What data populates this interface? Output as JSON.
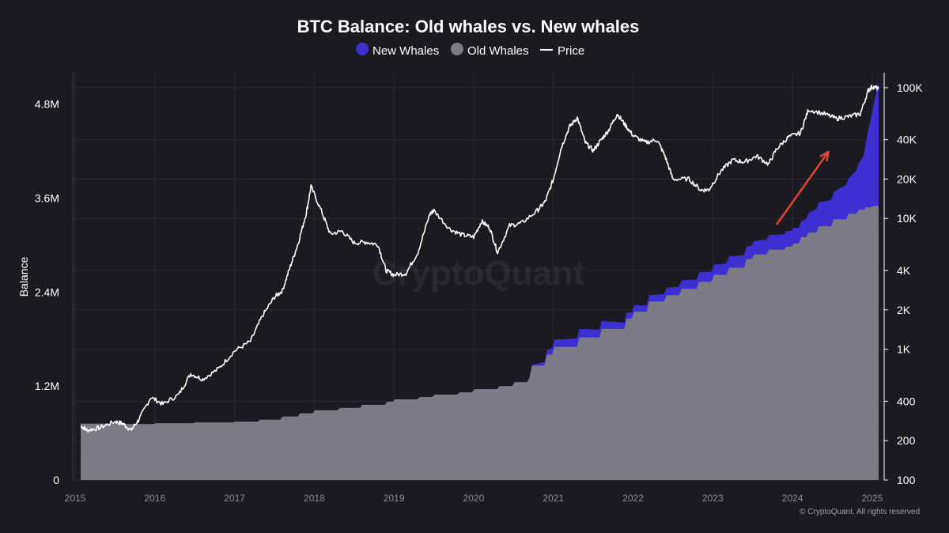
{
  "chart_data": {
    "type": "area",
    "title": "BTC Balance: Old whales vs. New whales",
    "ylabel": "Balance",
    "legend": [
      {
        "name": "New Whales",
        "color": "#3d2fd1",
        "marker": "circle"
      },
      {
        "name": "Old Whales",
        "color": "#7c7b86",
        "marker": "circle"
      },
      {
        "name": "Price",
        "color": "#ffffff",
        "marker": "line"
      }
    ],
    "y_left": {
      "min": 0,
      "max": 5200000,
      "ticks": [
        0,
        1200000,
        2400000,
        3600000,
        4800000
      ],
      "tick_labels": [
        "0",
        "1.2M",
        "2.4M",
        "3.6M",
        "4.8M"
      ]
    },
    "y_right": {
      "scale": "log",
      "min": 100,
      "max": 130000,
      "ticks": [
        100,
        200,
        400,
        1000,
        2000,
        4000,
        10000,
        20000,
        40000,
        100000
      ],
      "tick_labels": [
        "100",
        "200",
        "400",
        "1K",
        "2K",
        "4K",
        "10K",
        "20K",
        "40K",
        "100K"
      ]
    },
    "x_ticks": [
      "2015",
      "2016",
      "2017",
      "2018",
      "2019",
      "2020",
      "2021",
      "2022",
      "2023",
      "2024",
      "2025"
    ],
    "x_range": [
      2015.0,
      2025.1
    ],
    "grid": true,
    "legend_position": "top-center",
    "series": [
      {
        "name": "Old Whales",
        "x": [
          2015.07,
          2015.5,
          2016.0,
          2016.5,
          2017.0,
          2017.3,
          2017.6,
          2017.8,
          2018.0,
          2018.3,
          2018.6,
          2018.9,
          2019.0,
          2019.3,
          2019.5,
          2019.8,
          2020.0,
          2020.3,
          2020.5,
          2020.7,
          2020.72,
          2020.9,
          2021.0,
          2021.3,
          2021.6,
          2021.9,
          2022.0,
          2022.2,
          2022.4,
          2022.6,
          2022.8,
          2023.0,
          2023.2,
          2023.4,
          2023.5,
          2023.7,
          2023.9,
          2024.0,
          2024.1,
          2024.2,
          2024.3,
          2024.5,
          2024.7,
          2024.8,
          2024.9,
          2025.0,
          2025.08
        ],
        "values": [
          720000,
          715000,
          725000,
          735000,
          745000,
          770000,
          810000,
          850000,
          890000,
          920000,
          960000,
          1000000,
          1030000,
          1060000,
          1090000,
          1120000,
          1160000,
          1200000,
          1250000,
          1300000,
          1460000,
          1600000,
          1700000,
          1820000,
          1930000,
          2060000,
          2150000,
          2280000,
          2360000,
          2440000,
          2530000,
          2620000,
          2710000,
          2820000,
          2880000,
          2940000,
          2980000,
          3020000,
          3100000,
          3160000,
          3240000,
          3330000,
          3400000,
          3450000,
          3480000,
          3500000,
          3500000
        ]
      },
      {
        "name": "New Whales",
        "x": [
          2015.07,
          2020.7,
          2020.9,
          2021.0,
          2021.3,
          2021.6,
          2021.9,
          2022.2,
          2022.6,
          2023.0,
          2023.4,
          2023.7,
          2024.0,
          2024.1,
          2024.2,
          2024.3,
          2024.5,
          2024.6,
          2024.7,
          2024.8,
          2024.9,
          2024.95,
          2025.0,
          2025.05,
          2025.08
        ],
        "values": [
          0,
          0,
          50000,
          90000,
          110000,
          100000,
          80000,
          80000,
          110000,
          130000,
          160000,
          190000,
          200000,
          200000,
          250000,
          300000,
          340000,
          400000,
          450000,
          550000,
          700000,
          1000000,
          1200000,
          1450000,
          1600000
        ]
      },
      {
        "name": "Price",
        "axis": "right",
        "x": [
          2015.07,
          2015.15,
          2015.3,
          2015.5,
          2015.6,
          2015.7,
          2015.8,
          2015.95,
          2016.1,
          2016.3,
          2016.45,
          2016.6,
          2016.8,
          2017.0,
          2017.2,
          2017.35,
          2017.5,
          2017.6,
          2017.7,
          2017.8,
          2017.9,
          2017.96,
          2018.1,
          2018.2,
          2018.35,
          2018.5,
          2018.65,
          2018.8,
          2018.9,
          2019.0,
          2019.15,
          2019.3,
          2019.45,
          2019.5,
          2019.7,
          2019.85,
          2020.0,
          2020.1,
          2020.2,
          2020.3,
          2020.45,
          2020.6,
          2020.8,
          2020.9,
          2021.0,
          2021.1,
          2021.2,
          2021.3,
          2021.4,
          2021.5,
          2021.6,
          2021.7,
          2021.8,
          2021.9,
          2022.0,
          2022.15,
          2022.3,
          2022.4,
          2022.5,
          2022.7,
          2022.85,
          2022.95,
          2023.1,
          2023.25,
          2023.4,
          2023.55,
          2023.7,
          2023.8,
          2023.95,
          2024.1,
          2024.2,
          2024.4,
          2024.55,
          2024.7,
          2024.85,
          2024.95,
          2025.0,
          2025.08
        ],
        "values": [
          260,
          240,
          250,
          280,
          270,
          240,
          290,
          430,
          380,
          450,
          650,
          590,
          710,
          970,
          1150,
          1800,
          2500,
          2800,
          4300,
          6500,
          11000,
          17500,
          11000,
          7600,
          8000,
          6500,
          6600,
          6300,
          4000,
          3700,
          3800,
          5500,
          10800,
          11500,
          8300,
          7500,
          7200,
          9500,
          8500,
          5500,
          8800,
          9200,
          11500,
          13500,
          20000,
          35000,
          50000,
          59000,
          38000,
          33000,
          40000,
          48000,
          63000,
          52000,
          43000,
          38000,
          40000,
          30000,
          20000,
          20000,
          16500,
          16600,
          23000,
          28000,
          27000,
          30000,
          26000,
          34000,
          42000,
          45000,
          68000,
          63000,
          58000,
          60000,
          63000,
          95000,
          102000,
          98000
        ]
      }
    ],
    "annotations": [
      {
        "type": "arrow",
        "color": "#e0443a",
        "from_x": 2023.8,
        "to_x": 2024.45
      }
    ]
  },
  "watermark": "CryptoQuant",
  "footer": "© CryptoQuant. All rights reserved"
}
